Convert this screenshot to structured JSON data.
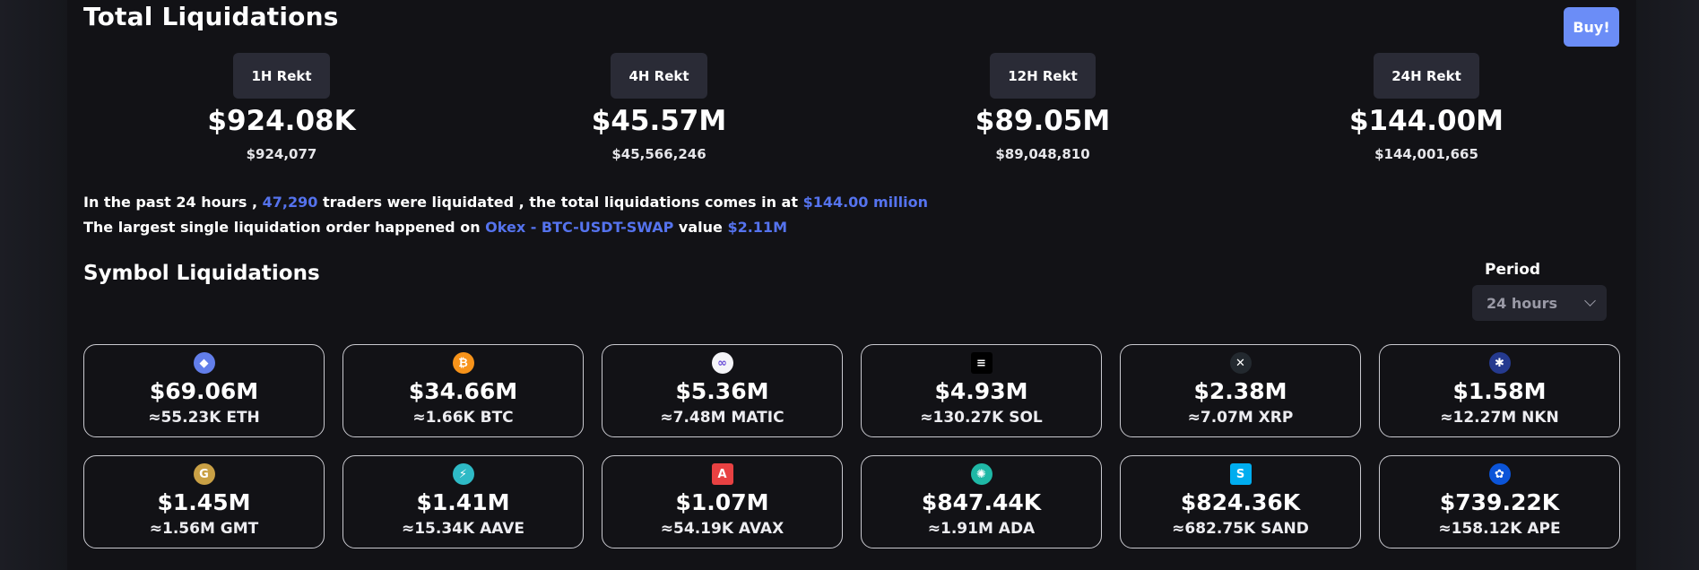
{
  "header": {
    "title": "Total Liquidations",
    "buy_label": "Buy!"
  },
  "rekt": [
    {
      "label": "1H Rekt",
      "value": "$924.08K",
      "exact": "$924,077"
    },
    {
      "label": "4H Rekt",
      "value": "$45.57M",
      "exact": "$45,566,246"
    },
    {
      "label": "12H Rekt",
      "value": "$89.05M",
      "exact": "$89,048,810"
    },
    {
      "label": "24H Rekt",
      "value": "$144.00M",
      "exact": "$144,001,665"
    }
  ],
  "summary": {
    "line1_prefix": "In the past 24 hours ,",
    "traders": "47,290",
    "line1_mid": "traders were liquidated , the total liquidations comes in at",
    "total": "$144.00 million",
    "line2_prefix": "The largest single liquidation order happened on",
    "exchange_pair": "Okex - BTC-USDT-SWAP",
    "line2_mid": "value",
    "largest_value": "$2.11M"
  },
  "symbols": {
    "title": "Symbol Liquidations",
    "period_label": "Period",
    "period_value": "24 hours",
    "cards": [
      {
        "icon": "eth-icon",
        "glyph": "◆",
        "color": "#627eea",
        "value": "$69.06M",
        "amount": "≈55.23K ETH"
      },
      {
        "icon": "btc-icon",
        "glyph": "₿",
        "color": "#f7931a",
        "value": "$34.66M",
        "amount": "≈1.66K BTC"
      },
      {
        "icon": "matic-icon",
        "glyph": "∞",
        "color": "#f4f4f8",
        "value": "$5.36M",
        "amount": "≈7.48M MATIC"
      },
      {
        "icon": "sol-icon",
        "glyph": "≡",
        "color": "#000000",
        "value": "$4.93M",
        "amount": "≈130.27K SOL"
      },
      {
        "icon": "xrp-icon",
        "glyph": "✕",
        "color": "#23292f",
        "value": "$2.38M",
        "amount": "≈7.07M XRP"
      },
      {
        "icon": "nkn-icon",
        "glyph": "✱",
        "color": "#253a8f",
        "value": "$1.58M",
        "amount": "≈12.27M NKN"
      },
      {
        "icon": "gmt-icon",
        "glyph": "G",
        "color": "#c9a045",
        "value": "$1.45M",
        "amount": "≈1.56M GMT"
      },
      {
        "icon": "aave-icon",
        "glyph": "⚡",
        "color": "#2ebac6",
        "value": "$1.41M",
        "amount": "≈15.34K AAVE"
      },
      {
        "icon": "avax-icon",
        "glyph": "A",
        "color": "#e84142",
        "value": "$1.07M",
        "amount": "≈54.19K AVAX"
      },
      {
        "icon": "ada-icon",
        "glyph": "✺",
        "color": "#1fb8a6",
        "value": "$847.44K",
        "amount": "≈1.91M ADA"
      },
      {
        "icon": "sand-icon",
        "glyph": "S",
        "color": "#00adef",
        "value": "$824.36K",
        "amount": "≈682.75K SAND"
      },
      {
        "icon": "ape-icon",
        "glyph": "✿",
        "color": "#0b54d8",
        "value": "$739.22K",
        "amount": "≈158.12K APE"
      }
    ]
  }
}
